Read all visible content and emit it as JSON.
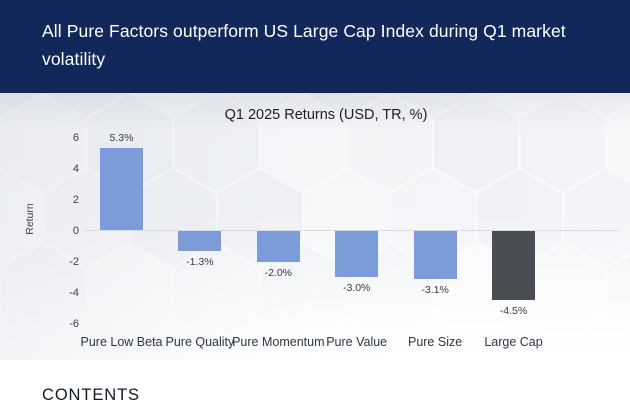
{
  "header": {
    "title": "All Pure Factors outperform US Large Cap Index during Q1 market volatility",
    "background_color": "#12275A",
    "text_color": "#FFFFFF"
  },
  "chart_data": {
    "type": "bar",
    "title": "Q1 2025 Returns (USD, TR, %)",
    "xlabel": "",
    "ylabel": "Return",
    "categories": [
      "Pure Low Beta",
      "Pure Quality",
      "Pure Momentum",
      "Pure Value",
      "Pure Size",
      "Large Cap"
    ],
    "values": [
      5.3,
      -1.3,
      -2.0,
      -3.0,
      -3.1,
      -4.5
    ],
    "data_labels": [
      "5.3%",
      "-1.3%",
      "-2.0%",
      "-3.0%",
      "-3.1%",
      "-4.5%"
    ],
    "bar_colors": [
      "#7C9BD9",
      "#7C9BD9",
      "#7C9BD9",
      "#7C9BD9",
      "#7C9BD9",
      "#4A4E54"
    ],
    "yticks": [
      6,
      4,
      2,
      0,
      -2,
      -4,
      -6
    ],
    "ylim": [
      -6,
      6
    ],
    "grid": false,
    "legend_position": "none",
    "accent_color": "#7C9BD9",
    "highlight_color": "#4A4E54"
  },
  "footer": {
    "contents_label": "CONTENTS"
  }
}
